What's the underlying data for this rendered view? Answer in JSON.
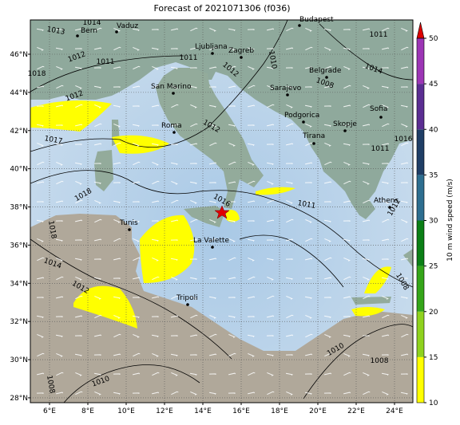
{
  "title": "Forecast of 2021071306 (f036)",
  "map": {
    "lon_ticks": [
      {
        "value": 6,
        "label": "6°E"
      },
      {
        "value": 8,
        "label": "8°E"
      },
      {
        "value": 10,
        "label": "10°E"
      },
      {
        "value": 12,
        "label": "12°E"
      },
      {
        "value": 14,
        "label": "14°E"
      },
      {
        "value": 16,
        "label": "16°E"
      },
      {
        "value": 18,
        "label": "18°E"
      },
      {
        "value": 20,
        "label": "20°E"
      },
      {
        "value": 22,
        "label": "22°E"
      },
      {
        "value": 24,
        "label": "24°E"
      }
    ],
    "lat_ticks": [
      {
        "value": 28,
        "label": "28°N"
      },
      {
        "value": 30,
        "label": "30°N"
      },
      {
        "value": 32,
        "label": "32°N"
      },
      {
        "value": 34,
        "label": "34°N"
      },
      {
        "value": 36,
        "label": "36°N"
      },
      {
        "value": 38,
        "label": "38°N"
      },
      {
        "value": 40,
        "label": "40°N"
      },
      {
        "value": 42,
        "label": "42°N"
      },
      {
        "value": 44,
        "label": "44°N"
      },
      {
        "value": 46,
        "label": "46°N"
      }
    ],
    "cities": [
      "Bern",
      "Vaduz",
      "Budapest",
      "Ljubljana",
      "Zagreb",
      "Belgrade",
      "San Marino",
      "Sarajevo",
      "Roma",
      "Podgorica",
      "Skopje",
      "Tirana",
      "Sofia",
      "Athens",
      "Tunis",
      "La Valette",
      "Tripoli"
    ],
    "pressure_labels": [
      "1014",
      "1013",
      "1012",
      "1018",
      "1012",
      "1011",
      "1017",
      "1018",
      "1012",
      "1011",
      "1010",
      "1012",
      "1008",
      "1011",
      "1014",
      "1016",
      "1011",
      "1016",
      "1018",
      "1014",
      "1012",
      "1011",
      "1012",
      "1008",
      "1010",
      "1008",
      "1010",
      "1008"
    ],
    "colorbar": {
      "label": "10 m wind speed (m/s)",
      "ticks": [
        10,
        15,
        20,
        25,
        30,
        35,
        40,
        45,
        50
      ],
      "colors": [
        "#ffff00",
        "#8fd21e",
        "#34a519",
        "#0b7f16",
        "#2d6e90",
        "#1f3e66",
        "#5b2d92",
        "#9c35b5"
      ],
      "over_color": "#dd0000"
    }
  }
}
